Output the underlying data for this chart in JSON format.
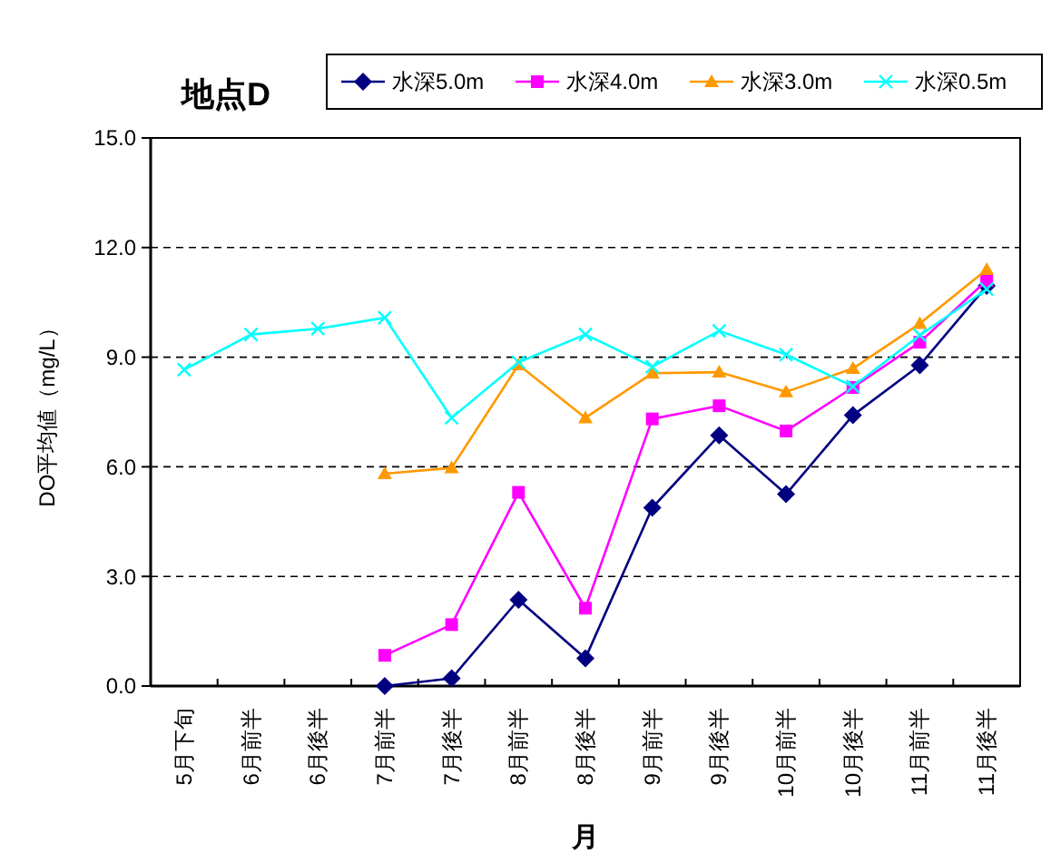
{
  "chart_data": {
    "type": "line",
    "title": "地点D",
    "xlabel": "月",
    "ylabel": "DO平均値（mg/L）",
    "categories": [
      "5月下旬",
      "6月前半",
      "6月後半",
      "7月前半",
      "7月後半",
      "8月前半",
      "8月後半",
      "9月前半",
      "9月後半",
      "10月前半",
      "10月後半",
      "11月前半",
      "11月後半"
    ],
    "series": [
      {
        "name": "水深5.0m",
        "color": "#000080",
        "marker": "diamond",
        "values": [
          null,
          null,
          null,
          0.0,
          0.21,
          2.36,
          0.76,
          4.88,
          6.86,
          5.25,
          7.41,
          8.78,
          10.95
        ]
      },
      {
        "name": "水深4.0m",
        "color": "#ff00ff",
        "marker": "square",
        "values": [
          null,
          null,
          null,
          0.84,
          1.68,
          5.3,
          2.13,
          7.31,
          7.67,
          6.98,
          8.17,
          9.41,
          11.1
        ]
      },
      {
        "name": "水深3.0m",
        "color": "#ff9900",
        "marker": "triangle",
        "values": [
          null,
          null,
          null,
          5.81,
          5.97,
          8.79,
          7.34,
          8.56,
          8.59,
          8.05,
          8.69,
          9.92,
          11.4
        ]
      },
      {
        "name": "水深0.5m",
        "color": "#00ffff",
        "marker": "cross",
        "values": [
          8.66,
          9.62,
          9.78,
          10.08,
          7.34,
          8.86,
          9.62,
          8.74,
          9.72,
          9.07,
          8.2,
          9.6,
          10.86
        ]
      }
    ],
    "ylim": [
      0,
      15
    ],
    "yticks": [
      {
        "value": 0,
        "label": "0.0"
      },
      {
        "value": 3,
        "label": "3.0"
      },
      {
        "value": 6,
        "label": "6.0"
      },
      {
        "value": 9,
        "label": "9.0"
      },
      {
        "value": 12,
        "label": "12.0"
      },
      {
        "value": 15,
        "label": "15.0"
      }
    ],
    "grid": "y",
    "legend": "top right",
    "line_style": "solid"
  }
}
